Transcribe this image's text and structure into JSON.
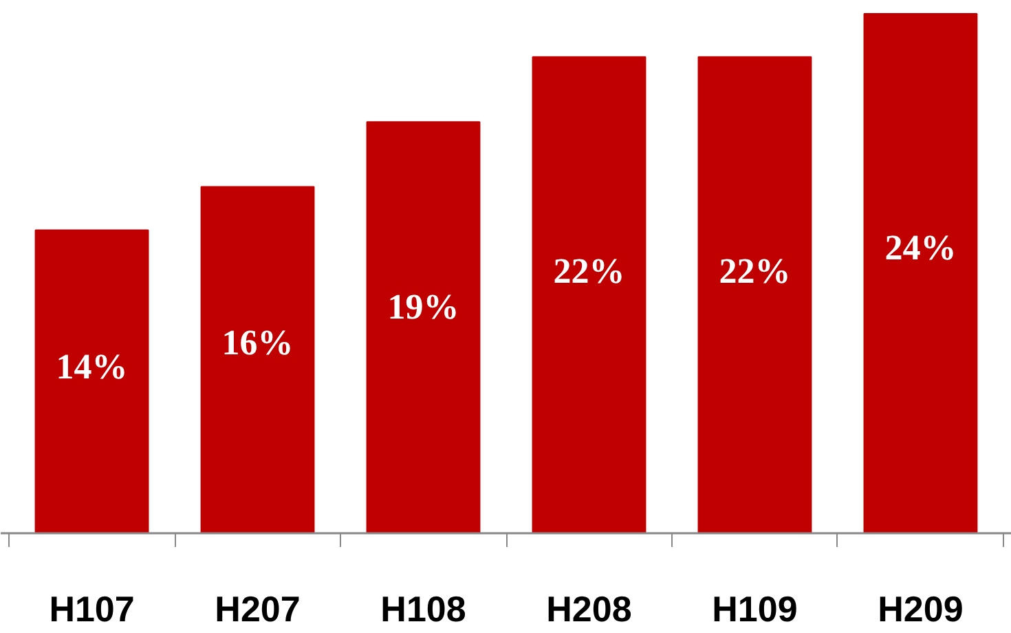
{
  "chart_data": {
    "type": "bar",
    "categories": [
      "H107",
      "H207",
      "H108",
      "H208",
      "H109",
      "H209"
    ],
    "values": [
      14,
      16,
      19,
      22,
      22,
      24
    ],
    "color": "#c00000",
    "data_labels": true,
    "value_labels": [
      "14%",
      "16%",
      "19%",
      "22%",
      "22%",
      "24%"
    ]
  }
}
